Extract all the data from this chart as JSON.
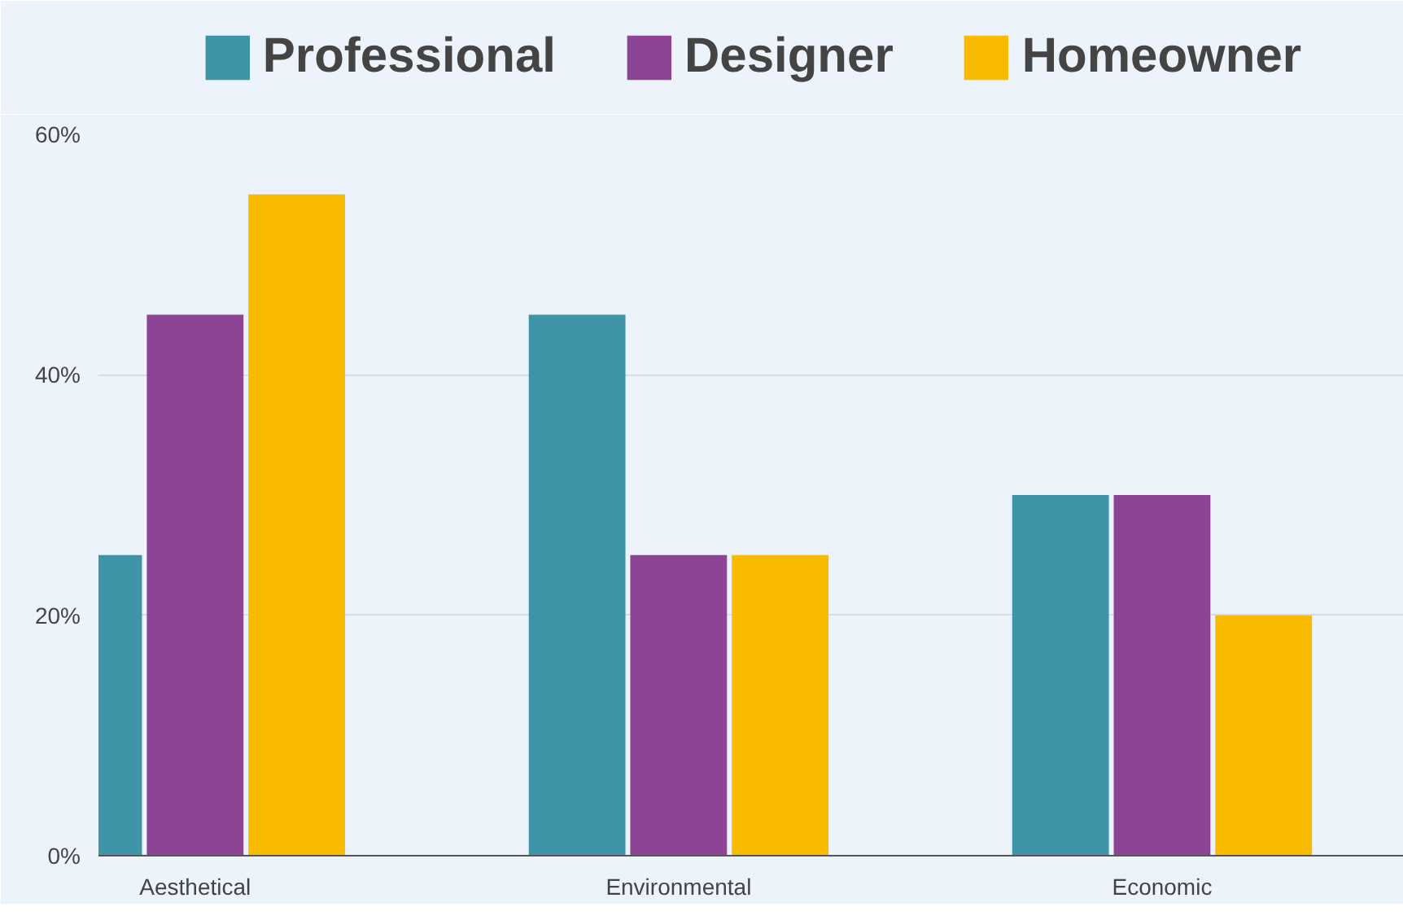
{
  "chart_data": {
    "type": "bar",
    "categories": [
      "Aesthetical",
      "Environmental",
      "Economic"
    ],
    "series": [
      {
        "name": "Professional",
        "color": "#3f95a7",
        "values": [
          25,
          45,
          30
        ]
      },
      {
        "name": "Designer",
        "color": "#8c4595",
        "values": [
          45,
          25,
          30
        ]
      },
      {
        "name": "Homeowner",
        "color": "#f8bb00",
        "values": [
          55,
          25,
          20
        ]
      }
    ],
    "ylim": [
      0,
      60
    ],
    "yticks": [
      {
        "value": 0,
        "label": "0%"
      },
      {
        "value": 20,
        "label": "20%"
      },
      {
        "value": 40,
        "label": "40%"
      },
      {
        "value": 60,
        "label": "60%"
      }
    ],
    "grid": "y",
    "legend": "top"
  }
}
